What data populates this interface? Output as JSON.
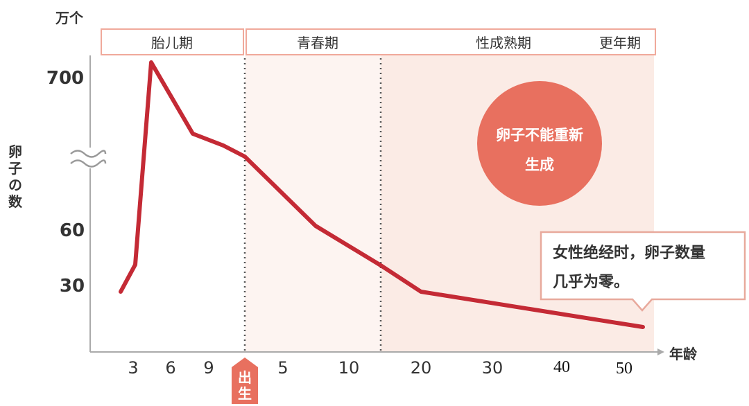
{
  "chart_data": {
    "type": "line",
    "y_unit": "万个",
    "ylabel": "卵子の数",
    "xlabel": "年龄",
    "y_ticks": [
      "700",
      "60",
      "30"
    ],
    "y_axis_break": true,
    "x_ticks": [
      "3",
      "6",
      "9",
      "5",
      "10",
      "20",
      "30",
      "40",
      "50"
    ],
    "birth_marker": "出生",
    "phases": [
      "胎儿期",
      "青春期",
      "性成熟期",
      "更年期"
    ],
    "series": [
      {
        "color": "#c42a35",
        "points": [
          {
            "x": "2",
            "y": 28
          },
          {
            "x": "2.5",
            "y": 40
          },
          {
            "x": "4",
            "y": 700
          },
          {
            "x": "7",
            "y": 600
          },
          {
            "x": "9",
            "y": 580
          },
          {
            "x": "出生",
            "y": 560
          },
          {
            "x": "8",
            "y": 63
          },
          {
            "x": "15",
            "y": 41
          },
          {
            "x": "20",
            "y": 28
          },
          {
            "x": "50",
            "y": 15
          }
        ]
      }
    ],
    "bubble_text": [
      "卵子不能重新",
      "生成"
    ],
    "callout_text": [
      "女性绝经时，卵子数量",
      "几乎为零。"
    ],
    "colors": {
      "line": "#c42a35",
      "bubble": "#e8705f",
      "shade": "#fbeee9",
      "shade_light": "#fdf4f1",
      "phase_border": "#f0a99b",
      "birth_marker": "#e8705f"
    }
  }
}
